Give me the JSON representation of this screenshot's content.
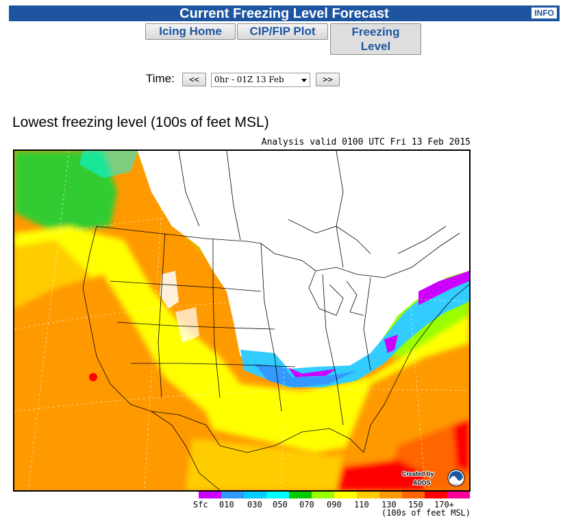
{
  "header": {
    "title": "Current Freezing Level Forecast",
    "info_label": "INFO"
  },
  "nav": {
    "icing_home": "Icing Home",
    "cip_fip_plot": "CIP/FIP Plot",
    "freezing_level_line1": "Freezing",
    "freezing_level_line2": "Level"
  },
  "time_control": {
    "label": "Time:",
    "prev_label": "<<",
    "next_label": ">>",
    "selected": "0hr - 01Z 13 Feb"
  },
  "map": {
    "title": "Lowest freezing level (100s of feet MSL)",
    "valid_text": "Analysis valid 0100 UTC Fri 13 Feb 2015",
    "credit_line1": "Created by",
    "credit_line2": "ADDS",
    "logo_name": "noaa-logo-icon"
  },
  "legend": {
    "colors": [
      "#cc00ff",
      "#3399ff",
      "#00ccff",
      "#00ffff",
      "#00cc00",
      "#99ff00",
      "#ffff00",
      "#ffcc00",
      "#ff9900",
      "#ff6600",
      "#ff0000",
      "#ff0099"
    ],
    "labels": [
      "Sfc",
      "010",
      "030",
      "050",
      "070",
      "090",
      "110",
      "130",
      "150",
      "170+"
    ],
    "units": "(100s of feet MSL)"
  }
}
